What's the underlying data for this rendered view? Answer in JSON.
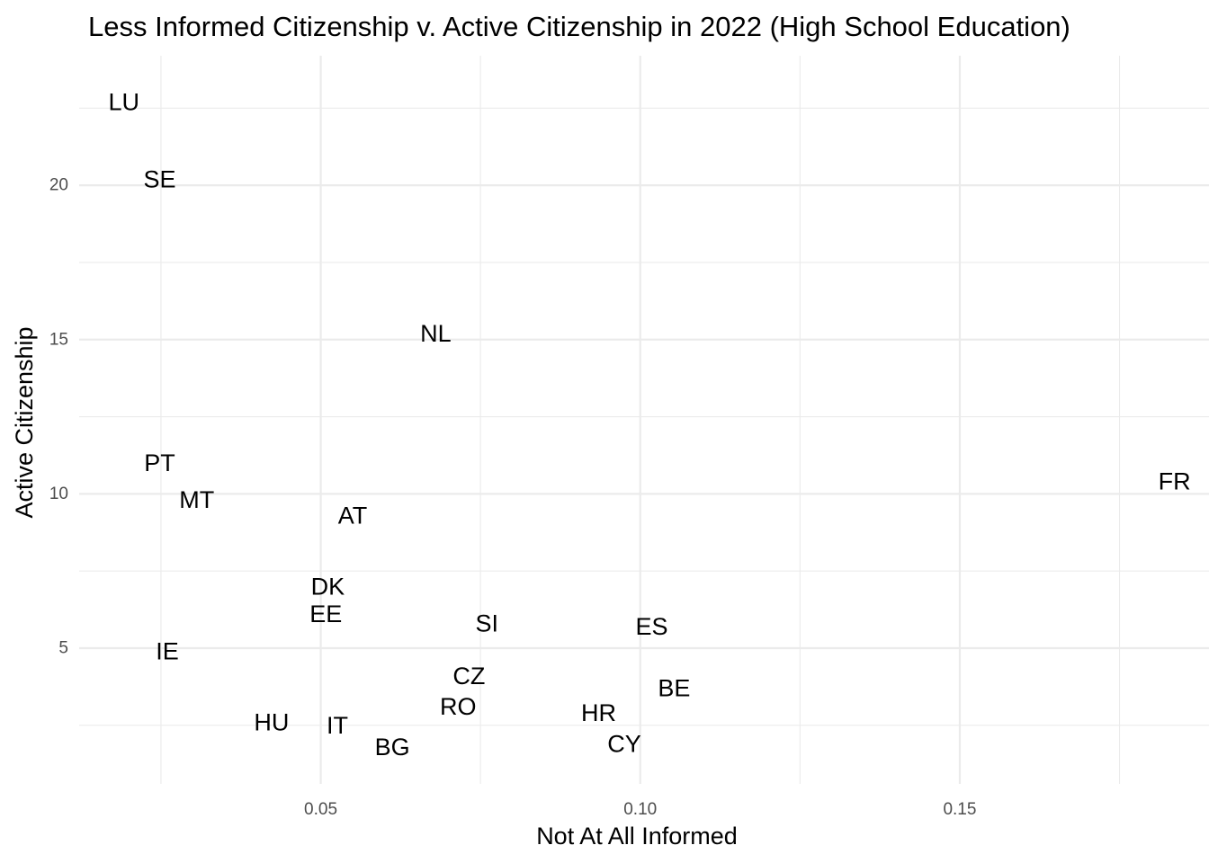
{
  "chart_data": {
    "type": "scatter",
    "title": "Less Informed Citizenship v. Active Citizenship in 2022 (High School Education)",
    "xlabel": "Not At All Informed",
    "ylabel": "Active Citizenship",
    "xlim": [
      0.0122,
      0.189
    ],
    "ylim": [
      0.6,
      24.2
    ],
    "x_major_ticks": [
      0.05,
      0.1,
      0.15
    ],
    "x_tick_labels": [
      "0.05",
      "0.10",
      "0.15"
    ],
    "x_minor_ticks": [
      0.025,
      0.075,
      0.125,
      0.175
    ],
    "y_major_ticks": [
      5,
      10,
      15,
      20
    ],
    "y_tick_labels": [
      "5",
      "10",
      "15",
      "20"
    ],
    "y_minor_ticks": [
      2.5,
      7.5,
      12.5,
      17.5,
      22.5
    ],
    "grid": true,
    "points": [
      {
        "label": "LU",
        "x": 0.0192,
        "y": 22.7
      },
      {
        "label": "SE",
        "x": 0.0248,
        "y": 20.2
      },
      {
        "label": "NL",
        "x": 0.068,
        "y": 15.2
      },
      {
        "label": "PT",
        "x": 0.0248,
        "y": 11.0
      },
      {
        "label": "MT",
        "x": 0.0306,
        "y": 9.8
      },
      {
        "label": "AT",
        "x": 0.055,
        "y": 9.3
      },
      {
        "label": "FR",
        "x": 0.1836,
        "y": 10.4
      },
      {
        "label": "DK",
        "x": 0.0511,
        "y": 7.0
      },
      {
        "label": "EE",
        "x": 0.0508,
        "y": 6.1
      },
      {
        "label": "SI",
        "x": 0.076,
        "y": 5.8
      },
      {
        "label": "ES",
        "x": 0.1018,
        "y": 5.7
      },
      {
        "label": "IE",
        "x": 0.026,
        "y": 4.9
      },
      {
        "label": "CZ",
        "x": 0.0732,
        "y": 4.1
      },
      {
        "label": "BE",
        "x": 0.1053,
        "y": 3.7
      },
      {
        "label": "RO",
        "x": 0.0715,
        "y": 3.1
      },
      {
        "label": "HR",
        "x": 0.0935,
        "y": 2.9
      },
      {
        "label": "HU",
        "x": 0.0423,
        "y": 2.6
      },
      {
        "label": "IT",
        "x": 0.0526,
        "y": 2.5
      },
      {
        "label": "CY",
        "x": 0.0975,
        "y": 1.9
      },
      {
        "label": "BG",
        "x": 0.0612,
        "y": 1.8
      }
    ]
  }
}
